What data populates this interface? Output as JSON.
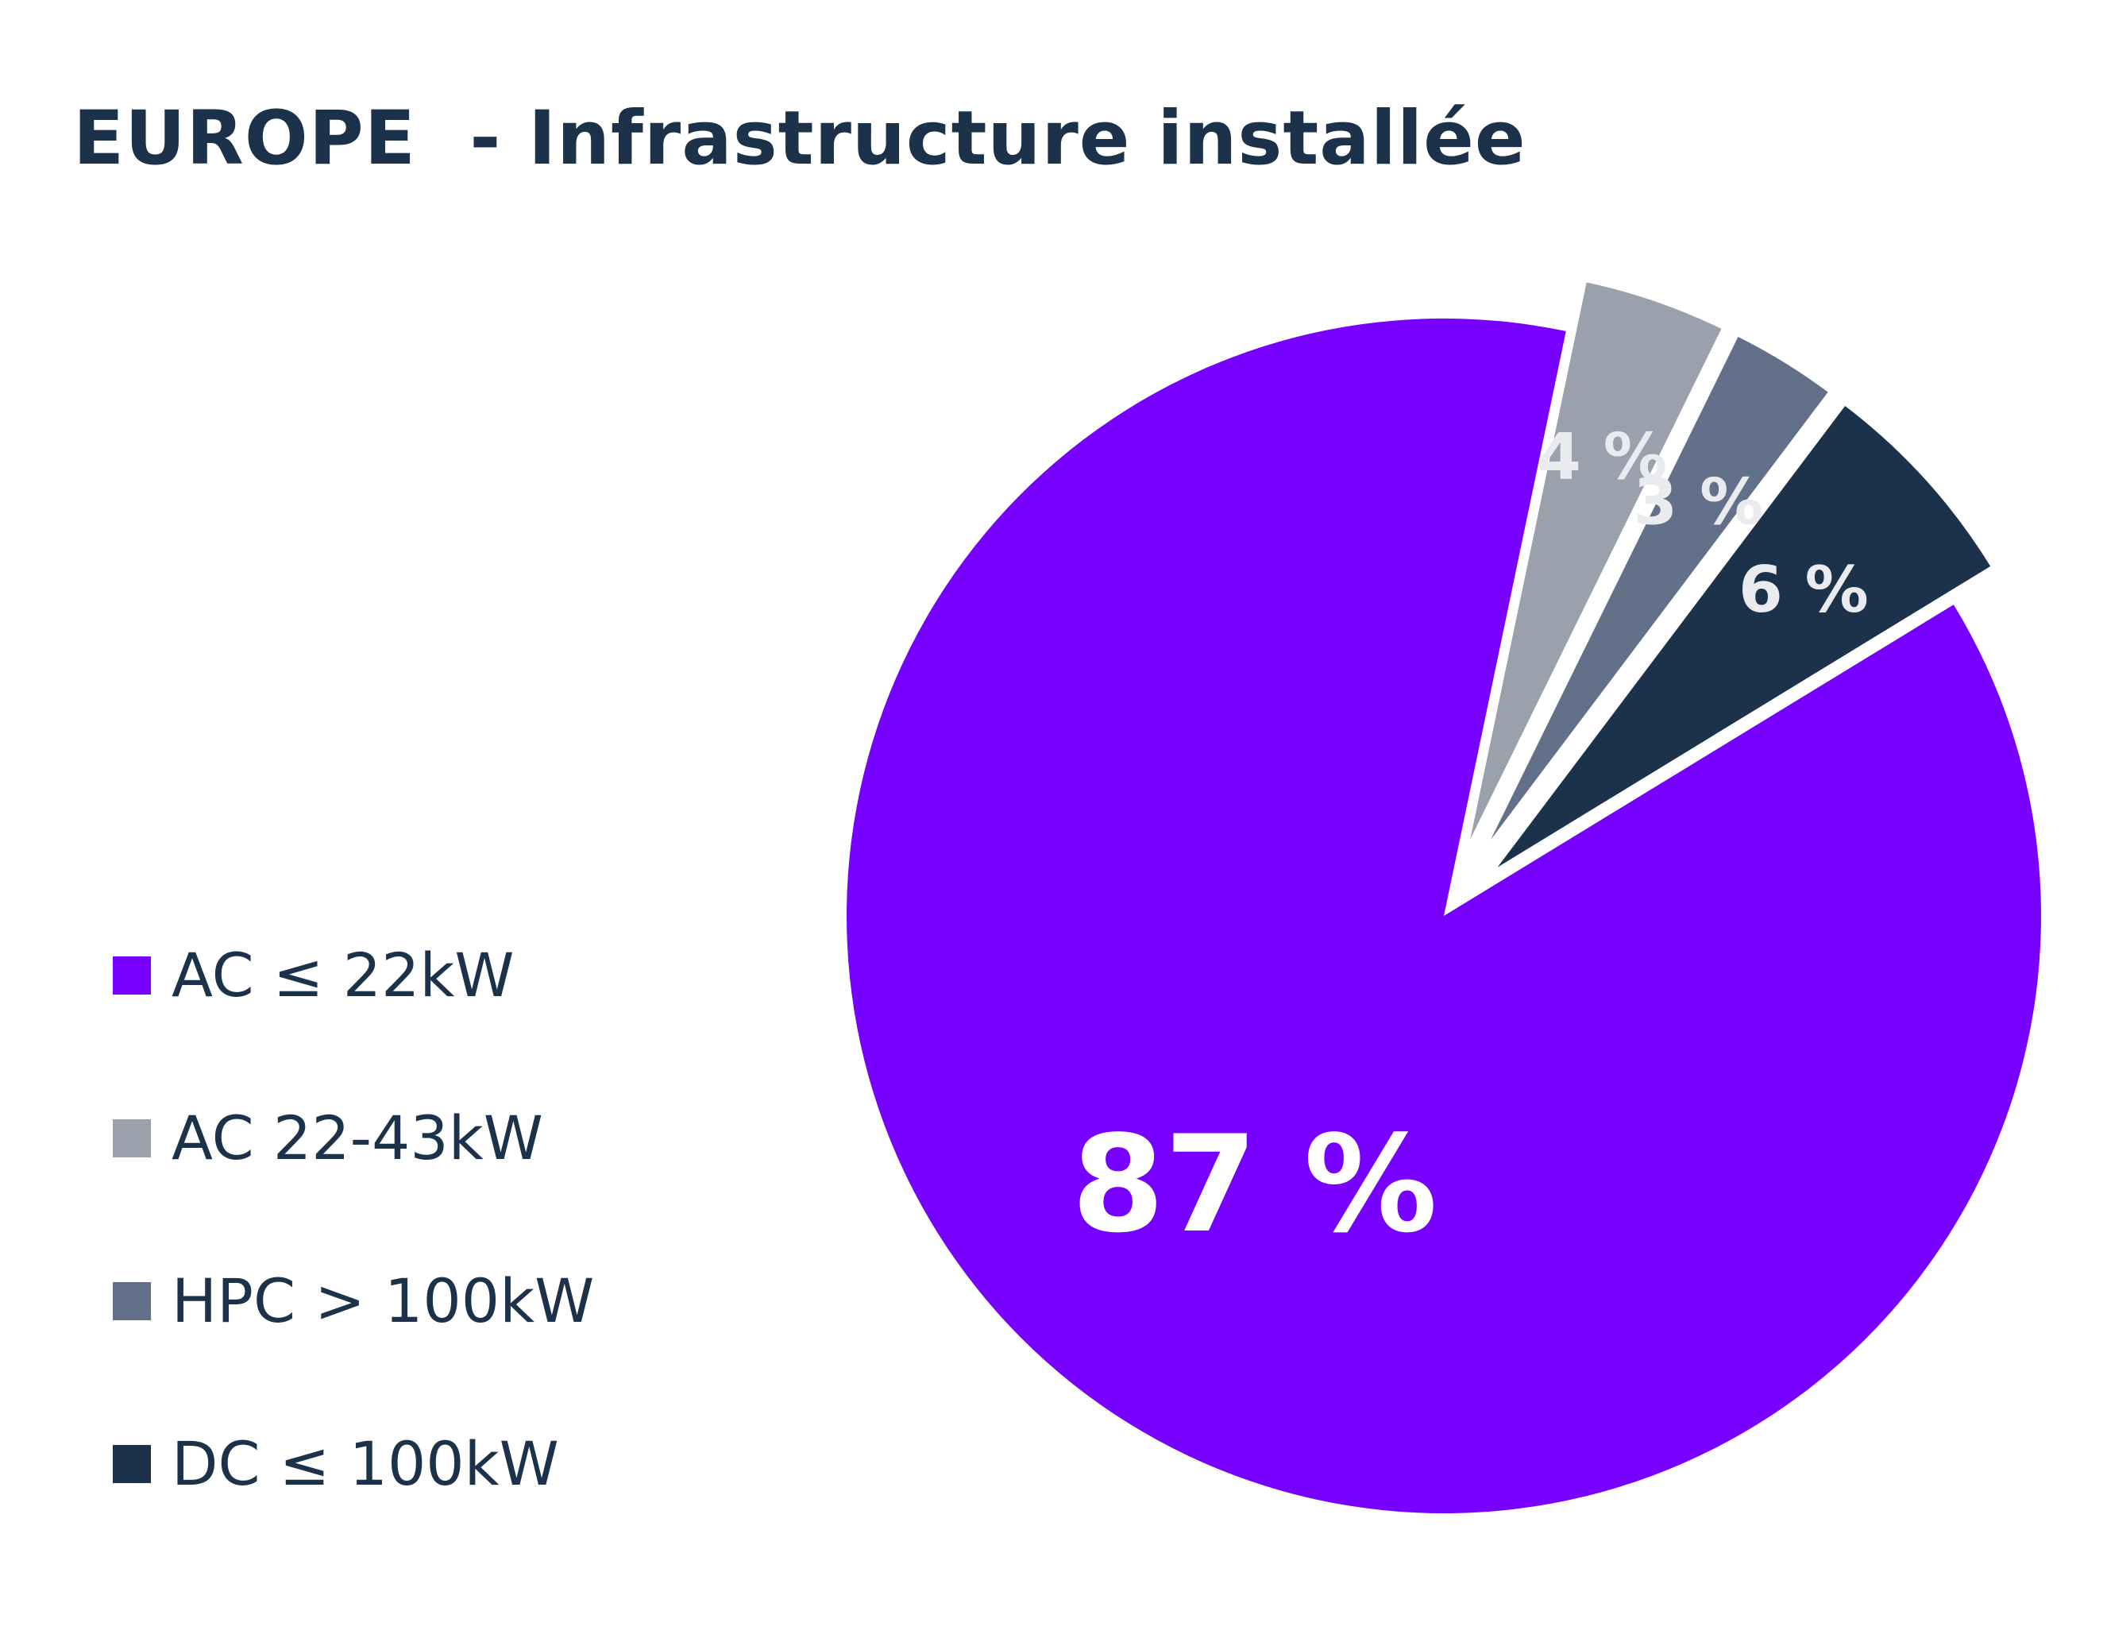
{
  "chart_data": {
    "type": "pie",
    "title": "EUROPE  - Infrastructure installée",
    "legend_position": "left",
    "slices": [
      {
        "name": "AC ≤ 22kW",
        "value": 87,
        "label": "87 %",
        "color": "#7700ff",
        "label_color": "#ffffff",
        "exploded": false
      },
      {
        "name": "AC 22-43kW",
        "value": 4,
        "label": "4 %",
        "color": "#9aa1ac",
        "label_color": "#e9ebef",
        "exploded": true
      },
      {
        "name": "HPC > 100kW",
        "value": 3,
        "label": "3 %",
        "color": "#627089",
        "label_color": "#e9ebef",
        "exploded": true
      },
      {
        "name": "DC ≤ 100kW",
        "value": 6,
        "label": "6 %",
        "color": "#1c324b",
        "label_color": "#e9ebef",
        "exploded": true
      }
    ]
  }
}
